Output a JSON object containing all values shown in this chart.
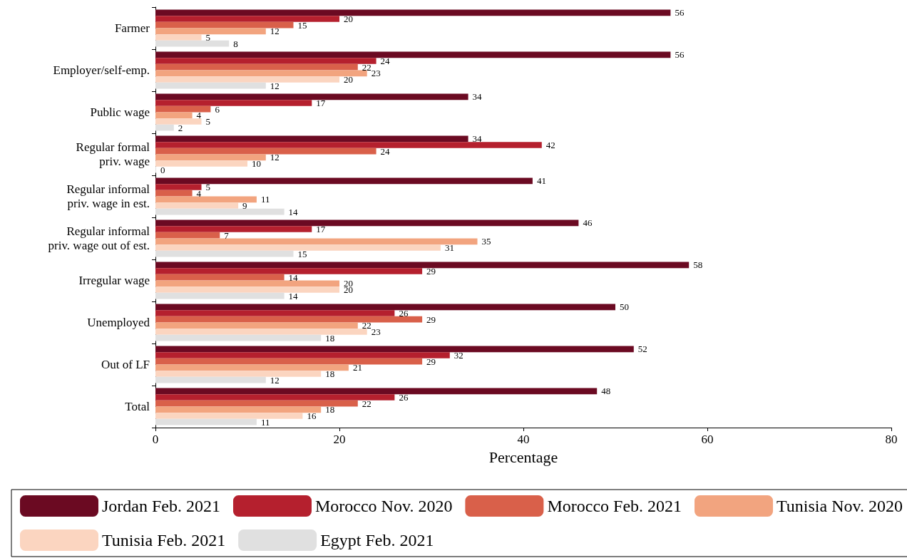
{
  "chart_data": {
    "type": "bar",
    "orientation": "horizontal",
    "xlabel": "Percentage",
    "categories": [
      "Farmer",
      "Employer/self-emp.",
      "Public wage",
      "Regular formal\npriv. wage",
      "Regular informal\npriv. wage in est.",
      "Regular informal\npriv. wage out of est.",
      "Irregular wage",
      "Unemployed",
      "Out of LF",
      "Total"
    ],
    "series": [
      {
        "name": "Jordan Feb. 2021",
        "color": "#6b0a22",
        "values": [
          56,
          56,
          34,
          34,
          41,
          46,
          58,
          50,
          52,
          48
        ]
      },
      {
        "name": "Morocco Nov. 2020",
        "color": "#b5202e",
        "values": [
          20,
          24,
          17,
          42,
          5,
          17,
          29,
          26,
          32,
          26
        ]
      },
      {
        "name": "Morocco Feb. 2021",
        "color": "#d9604a",
        "values": [
          15,
          22,
          6,
          24,
          4,
          7,
          14,
          29,
          29,
          22
        ]
      },
      {
        "name": "Tunisia Nov. 2020",
        "color": "#f2a47f",
        "values": [
          12,
          23,
          4,
          12,
          11,
          35,
          20,
          22,
          21,
          18
        ]
      },
      {
        "name": "Tunisia Feb. 2021",
        "color": "#fbd5c0",
        "values": [
          5,
          20,
          5,
          10,
          9,
          31,
          20,
          23,
          18,
          16
        ]
      },
      {
        "name": "Egypt Feb. 2021",
        "color": "#e0e0e0",
        "values": [
          8,
          12,
          2,
          0,
          14,
          15,
          14,
          18,
          12,
          11
        ]
      }
    ],
    "xlim": [
      0,
      80
    ],
    "xticks": [
      0,
      20,
      40,
      60,
      80
    ],
    "grid": false,
    "legend": "bottom",
    "data_labels": true
  }
}
